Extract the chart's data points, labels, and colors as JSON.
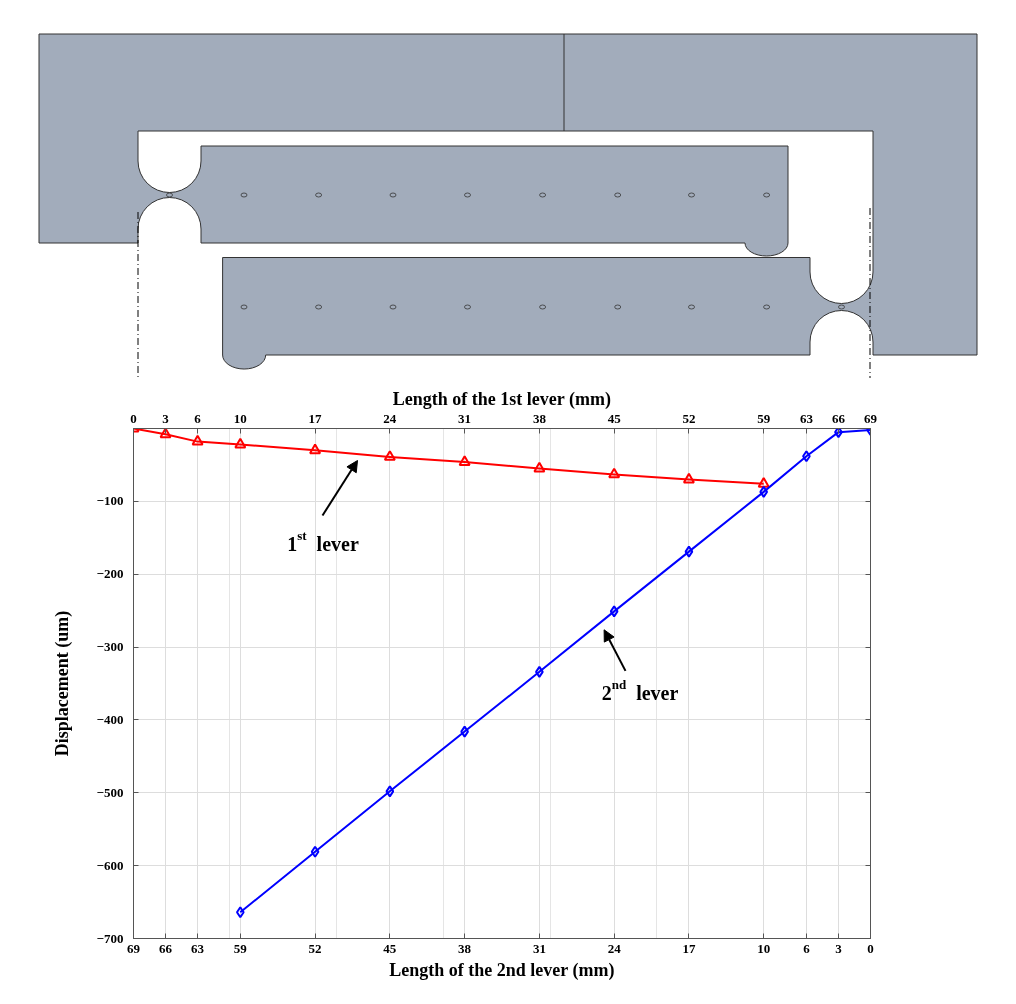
{
  "chart_data": {
    "type": "line",
    "xlabel": "Length of the 2nd lever (mm)",
    "x2label": "Length of the 1st lever (mm)",
    "ylabel": "Displacement (um)",
    "xlim": [
      69,
      0
    ],
    "xticks": [
      69,
      66,
      63,
      59,
      52,
      45,
      38,
      31,
      24,
      17,
      10,
      6,
      3,
      0
    ],
    "x2lim": [
      0,
      69
    ],
    "x2ticks": [
      0,
      3,
      6,
      10,
      17,
      24,
      31,
      38,
      45,
      52,
      59,
      63,
      66,
      69
    ],
    "ylim": [
      -700,
      0
    ],
    "yticks": [
      -700,
      -600,
      -500,
      -400,
      -300,
      -200,
      -100
    ],
    "grid": true,
    "line_style": "solid",
    "series": [
      {
        "color": "#ff0000",
        "axis": "x2",
        "marker": "triangle",
        "x": [
          0,
          3,
          6,
          10,
          17,
          24,
          31,
          38,
          45,
          52,
          59
        ],
        "values": [
          0,
          -8,
          -18,
          -22,
          -30,
          -39,
          -46,
          -55,
          -63,
          -70,
          -76
        ]
      },
      {
        "color": "#0000ff",
        "marker": "diamond",
        "x": [
          0,
          3,
          6,
          10,
          17,
          24,
          31,
          38,
          45,
          52,
          59
        ],
        "values": [
          -2,
          -5,
          -38,
          -87,
          -169,
          -251,
          -334,
          -416,
          -498,
          -581,
          -664
        ]
      }
    ],
    "annotations": [
      "1$^{st}$ lever",
      "2$^{nd}$ lever"
    ]
  }
}
